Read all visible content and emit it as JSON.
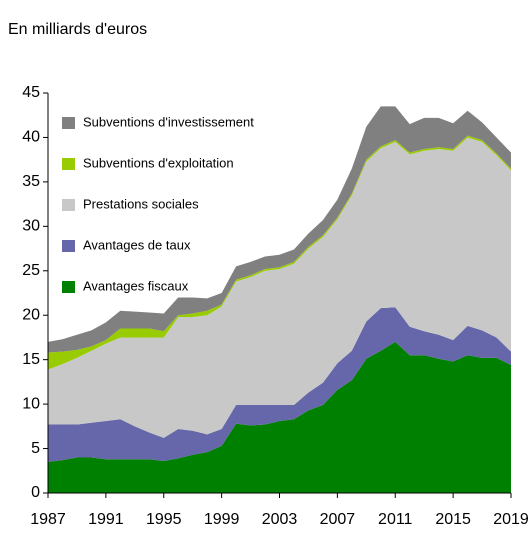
{
  "chart_data": {
    "type": "stacked_area",
    "subtitle": "En milliards d'euros",
    "x": [
      1987,
      1988,
      1989,
      1990,
      1991,
      1992,
      1993,
      1994,
      1995,
      1996,
      1997,
      1998,
      1999,
      2000,
      2001,
      2002,
      2003,
      2004,
      2005,
      2006,
      2007,
      2008,
      2009,
      2010,
      2011,
      2012,
      2013,
      2014,
      2015,
      2016,
      2017,
      2018,
      2019
    ],
    "series": [
      {
        "name": "Subventions d'investissement",
        "color": "#808080",
        "values": [
          1.2,
          1.4,
          1.7,
          1.8,
          2.0,
          2.0,
          1.9,
          1.8,
          2.0,
          2.0,
          1.8,
          1.4,
          1.3,
          1.5,
          1.5,
          1.4,
          1.4,
          1.4,
          1.5,
          1.7,
          2.0,
          2.8,
          3.7,
          4.5,
          3.8,
          3.2,
          3.5,
          3.3,
          2.9,
          2.8,
          2.0,
          1.8,
          1.8
        ]
      },
      {
        "name": "Subventions d'exploitation",
        "color": "#99cc00",
        "values": [
          1.9,
          1.4,
          0.9,
          0.5,
          0.4,
          1.0,
          1.0,
          1.0,
          0.7,
          0.2,
          0.4,
          0.5,
          0.2,
          0.2,
          0.2,
          0.2,
          0.2,
          0.2,
          0.2,
          0.2,
          0.2,
          0.2,
          0.2,
          0.2,
          0.2,
          0.2,
          0.2,
          0.2,
          0.2,
          0.2,
          0.2,
          0.2,
          0.2
        ]
      },
      {
        "name": "Prestations sociales",
        "color": "#c8c8c8",
        "values": [
          6.2,
          6.8,
          7.5,
          8.1,
          8.7,
          9.2,
          10.0,
          10.7,
          11.3,
          12.6,
          12.8,
          13.4,
          13.8,
          13.9,
          14.4,
          15.1,
          15.3,
          15.9,
          16.2,
          16.4,
          16.2,
          17.5,
          18.0,
          18.0,
          18.6,
          19.4,
          20.3,
          20.9,
          21.3,
          21.2,
          21.2,
          20.5,
          20.4
        ]
      },
      {
        "name": "Avantages de taux",
        "color": "#6666aa",
        "values": [
          4.2,
          4.0,
          3.7,
          3.9,
          4.3,
          4.5,
          3.7,
          3.0,
          2.6,
          3.3,
          2.7,
          2.0,
          1.9,
          2.1,
          2.3,
          2.2,
          1.8,
          1.6,
          2.0,
          2.5,
          3.0,
          3.3,
          4.2,
          4.8,
          3.9,
          3.2,
          2.7,
          2.7,
          2.4,
          3.3,
          3.1,
          2.3,
          1.5
        ]
      },
      {
        "name": "Avantages fiscaux",
        "color": "#008000",
        "values": [
          3.5,
          3.7,
          4.0,
          4.0,
          3.8,
          3.8,
          3.8,
          3.8,
          3.6,
          3.9,
          4.3,
          4.6,
          5.3,
          7.8,
          7.6,
          7.7,
          8.1,
          8.3,
          9.3,
          9.9,
          11.6,
          12.7,
          15.1,
          16.0,
          17.0,
          15.5,
          15.5,
          15.1,
          14.8,
          15.5,
          15.2,
          15.2,
          14.4
        ]
      }
    ],
    "xlim": [
      1987,
      2019
    ],
    "xticks": [
      1987,
      1991,
      1995,
      1999,
      2003,
      2007,
      2011,
      2015,
      2019
    ],
    "ylim": [
      0,
      45
    ],
    "yticks": [
      0,
      5,
      10,
      15,
      20,
      25,
      30,
      35,
      40,
      45
    ],
    "legend": "upper left"
  }
}
